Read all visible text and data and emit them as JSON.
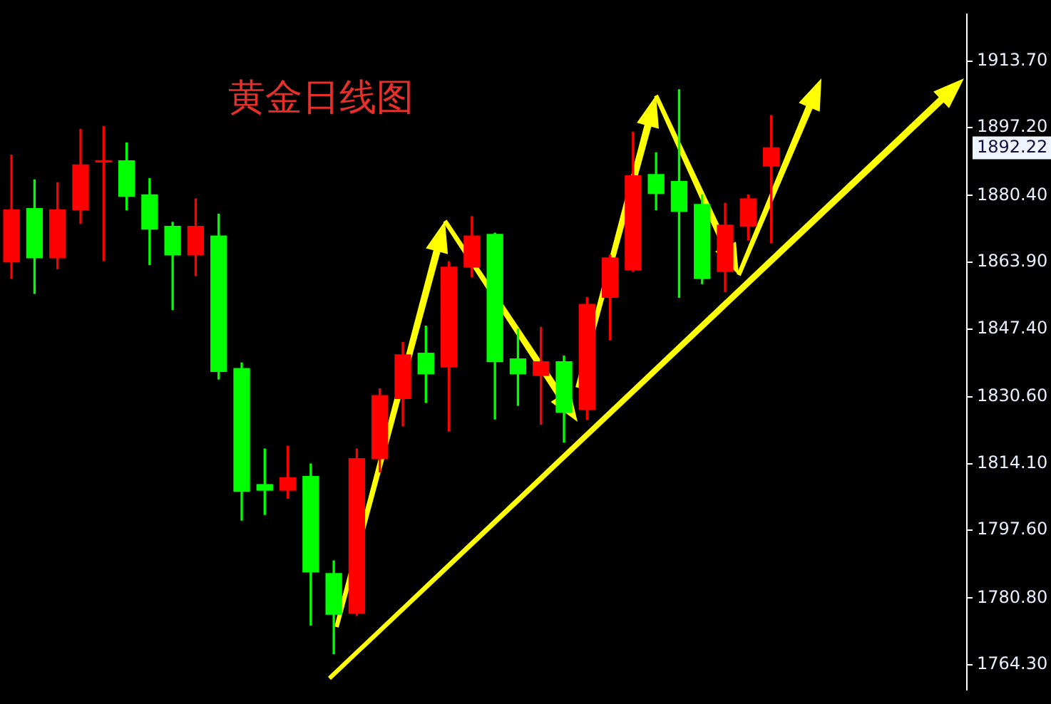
{
  "chart_data": {
    "type": "candlestick",
    "title": "黄金日线图",
    "categories": [
      null,
      null,
      null,
      null,
      null,
      null,
      null,
      null,
      null,
      null,
      null,
      null,
      null,
      null,
      null,
      null,
      null,
      null,
      null,
      null,
      null,
      null,
      null,
      null,
      null,
      null,
      null,
      null,
      null,
      null,
      null,
      null,
      null,
      null,
      null,
      null,
      null,
      null,
      null,
      null,
      null,
      null
    ],
    "ohlc": [
      [
        1864.0,
        1890.4,
        1859.9,
        1876.9
      ],
      [
        1877.2,
        1884.3,
        1856.2,
        1865.0
      ],
      [
        1865.0,
        1883.6,
        1862.3,
        1876.9
      ],
      [
        1876.9,
        1896.8,
        1873.5,
        1888.0
      ],
      [
        1888.7,
        1897.5,
        1864.3,
        1888.7
      ],
      [
        1889.0,
        1893.4,
        1876.9,
        1880.2
      ],
      [
        1880.6,
        1884.6,
        1863.3,
        1872.1
      ],
      [
        1872.8,
        1873.8,
        1852.2,
        1865.7
      ],
      [
        1865.7,
        1879.6,
        1860.6,
        1872.8
      ],
      [
        1870.4,
        1875.8,
        1835.0,
        1836.9
      ],
      [
        1837.6,
        1839.0,
        1800.1,
        1807.2
      ],
      [
        1808.9,
        1817.7,
        1801.5,
        1807.5
      ],
      [
        1807.5,
        1818.4,
        1805.5,
        1810.6
      ],
      [
        1810.9,
        1814.0,
        1774.1,
        1787.3
      ],
      [
        1786.9,
        1790.0,
        1767.0,
        1776.8
      ],
      [
        1777.1,
        1817.7,
        1776.5,
        1815.3
      ],
      [
        1815.3,
        1832.6,
        1812.0,
        1830.9
      ],
      [
        1830.2,
        1844.1,
        1823.4,
        1841.0
      ],
      [
        1841.4,
        1848.1,
        1829.2,
        1836.3
      ],
      [
        1838.0,
        1864.0,
        1822.1,
        1862.7
      ],
      [
        1862.7,
        1875.2,
        1860.3,
        1870.4
      ],
      [
        1870.8,
        1871.1,
        1825.1,
        1839.3
      ],
      [
        1840.0,
        1847.4,
        1828.5,
        1836.3
      ],
      [
        1835.9,
        1847.8,
        1823.8,
        1839.3
      ],
      [
        1839.3,
        1840.7,
        1819.4,
        1826.8
      ],
      [
        1827.5,
        1855.2,
        1825.0,
        1853.5
      ],
      [
        1855.2,
        1865.7,
        1844.7,
        1865.0
      ],
      [
        1862.0,
        1896.1,
        1861.7,
        1885.3
      ],
      [
        1885.6,
        1891.0,
        1876.9,
        1880.9
      ],
      [
        1883.9,
        1906.6,
        1855.2,
        1876.5
      ],
      [
        1878.2,
        1880.6,
        1858.6,
        1859.9
      ],
      [
        1861.6,
        1878.5,
        1856.6,
        1873.1
      ],
      [
        1872.8,
        1880.6,
        1869.4,
        1879.6
      ],
      [
        1887.7,
        1900.2,
        1868.7,
        1892.22
      ],
      null,
      null,
      null,
      null,
      null,
      null,
      null,
      null
    ],
    "colors": [
      "#ff0000",
      "#00ff00",
      "#ff0000",
      "#ff0000",
      "#ff0000",
      "#00ff00",
      "#00ff00",
      "#00ff00",
      "#ff0000",
      "#00ff00",
      "#00ff00",
      "#00ff00",
      "#ff0000",
      "#00ff00",
      "#00ff00",
      "#ff0000",
      "#ff0000",
      "#ff0000",
      "#00ff00",
      "#ff0000",
      "#ff0000",
      "#00ff00",
      "#00ff00",
      "#ff0000",
      "#00ff00",
      "#ff0000",
      "#ff0000",
      "#ff0000",
      "#00ff00",
      "#00ff00",
      "#00ff00",
      "#ff0000",
      "#ff0000",
      "#ff0000",
      null,
      null,
      null,
      null,
      null,
      null,
      null,
      null
    ],
    "ylim": [
      1758.2,
      1925.2
    ],
    "yticks": [
      {
        "value": 1913.7,
        "label": "1913.70"
      },
      {
        "value": 1897.2,
        "label": "1897.20"
      },
      {
        "value": 1880.4,
        "label": "1880.40"
      },
      {
        "value": 1863.9,
        "label": "1863.90"
      },
      {
        "value": 1847.4,
        "label": "1847.40"
      },
      {
        "value": 1830.6,
        "label": "1830.60"
      },
      {
        "value": 1814.1,
        "label": "1814.10"
      },
      {
        "value": 1797.6,
        "label": "1797.60"
      },
      {
        "value": 1780.8,
        "label": "1780.80"
      },
      {
        "value": 1764.3,
        "label": "1764.30"
      }
    ],
    "annotations": [
      "1892.22"
    ],
    "tick_labels": "y",
    "grid": false,
    "legend": false
  }
}
